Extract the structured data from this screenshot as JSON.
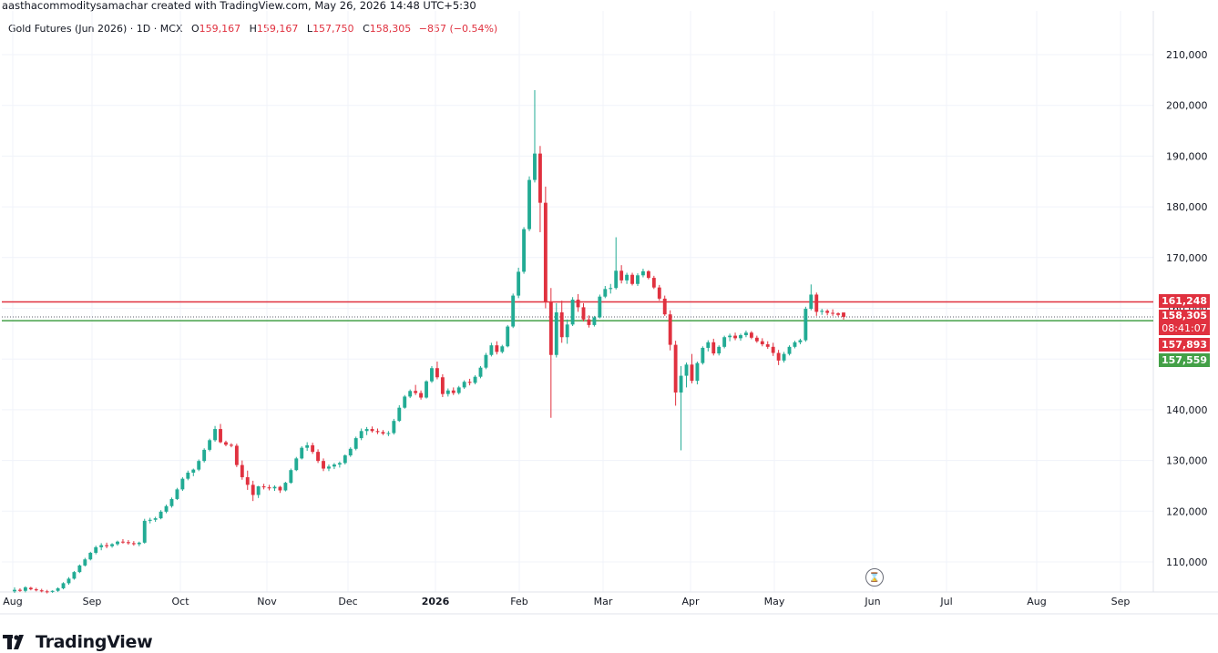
{
  "header": {
    "created_by": "aasthacommoditysamachar created with TradingView.com, May 26, 2026 14:48 UTC+5:30"
  },
  "legend": {
    "symbol": "Gold Futures (Jun 2026) · 1D · MCX",
    "o_key": "O",
    "o_val": "159,167",
    "h_key": "H",
    "h_val": "159,167",
    "l_key": "L",
    "l_val": "157,750",
    "c_key": "C",
    "c_val": "158,305",
    "change": "−857 (−0.54%)"
  },
  "price_tags": {
    "resistance": "161,248",
    "last": "158,305",
    "countdown": "08:41:07",
    "prev": "157,893",
    "support": "157,559"
  },
  "colors": {
    "up": "#22ab94",
    "down": "#e0313f",
    "resistance_line": "#e0313f",
    "support_line": "#43a047",
    "grid": "#f0f3fa"
  },
  "brand": {
    "name": "TradingView"
  },
  "icons": {
    "replay": "replay-icon",
    "logo": "tradingview-logo-icon"
  },
  "chart_data": {
    "type": "candlestick",
    "title": "Gold Futures (Jun 2026) · 1D · MCX",
    "ylim": [
      104000,
      214000
    ],
    "y_ticks": [
      110000,
      120000,
      130000,
      140000,
      150000,
      160000,
      170000,
      180000,
      190000,
      200000,
      210000
    ],
    "y_tick_labels": [
      "110,000",
      "120,000",
      "130,000",
      "140,000",
      "150,000",
      "160,000",
      "170,000",
      "180,000",
      "190,000",
      "200,000",
      "210,000"
    ],
    "x_ticks": [
      "Aug",
      "Sep",
      "Oct",
      "Nov",
      "Dec",
      "2026",
      "Feb",
      "Mar",
      "Apr",
      "May",
      "Jun",
      "Jul",
      "Aug",
      "Sep"
    ],
    "horizontal_lines": [
      {
        "value": 161248,
        "color": "#e0313f"
      },
      {
        "value": 157559,
        "color": "#43a047"
      }
    ],
    "last_price": 158305,
    "grid": true,
    "candle_keys": [
      "open",
      "high",
      "low",
      "close"
    ],
    "candles": [
      [
        104200,
        105000,
        103900,
        104500
      ],
      [
        104500,
        104800,
        104100,
        104300
      ],
      [
        104300,
        105200,
        104000,
        105000
      ],
      [
        104900,
        105100,
        104400,
        104600
      ],
      [
        104600,
        104900,
        104200,
        104400
      ],
      [
        104400,
        104700,
        104000,
        104200
      ],
      [
        104200,
        104500,
        103800,
        104100
      ],
      [
        104100,
        104400,
        103900,
        104300
      ],
      [
        104300,
        105000,
        104100,
        104800
      ],
      [
        104800,
        106000,
        104600,
        105800
      ],
      [
        105800,
        107000,
        105500,
        106700
      ],
      [
        106700,
        108200,
        106500,
        108000
      ],
      [
        108000,
        109500,
        107800,
        109300
      ],
      [
        109300,
        110800,
        109100,
        110500
      ],
      [
        110500,
        112000,
        110300,
        111800
      ],
      [
        111800,
        113200,
        111500,
        112900
      ],
      [
        112900,
        113700,
        112300,
        113300
      ],
      [
        113300,
        113800,
        112700,
        113100
      ],
      [
        113100,
        113700,
        112800,
        113500
      ],
      [
        113500,
        114200,
        113200,
        114000
      ],
      [
        114000,
        114500,
        113600,
        113900
      ],
      [
        113900,
        114300,
        113400,
        113700
      ],
      [
        113700,
        114100,
        113200,
        113500
      ],
      [
        113500,
        114000,
        113100,
        113800
      ],
      [
        113800,
        118500,
        113600,
        118100
      ],
      [
        118100,
        118700,
        117600,
        118300
      ],
      [
        118300,
        118900,
        117900,
        118600
      ],
      [
        118600,
        120200,
        118400,
        119900
      ],
      [
        119900,
        121300,
        119600,
        121000
      ],
      [
        121000,
        122700,
        120700,
        122400
      ],
      [
        122400,
        124600,
        122200,
        124300
      ],
      [
        124300,
        126700,
        124000,
        126400
      ],
      [
        126400,
        128000,
        126100,
        127600
      ],
      [
        127600,
        128400,
        126900,
        128200
      ],
      [
        128200,
        130200,
        127900,
        129900
      ],
      [
        129900,
        132400,
        129600,
        132100
      ],
      [
        132100,
        134300,
        131800,
        134000
      ],
      [
        134000,
        136800,
        133700,
        136200
      ],
      [
        136200,
        137200,
        133400,
        133600
      ],
      [
        133600,
        133900,
        132800,
        133100
      ],
      [
        133100,
        133400,
        132600,
        132900
      ],
      [
        132900,
        133300,
        128700,
        129100
      ],
      [
        129100,
        130000,
        126200,
        126700
      ],
      [
        126700,
        128000,
        124200,
        125200
      ],
      [
        125200,
        126000,
        122000,
        123200
      ],
      [
        123200,
        125000,
        122600,
        124900
      ],
      [
        124900,
        125400,
        124300,
        124700
      ],
      [
        124700,
        125200,
        124100,
        124500
      ],
      [
        124500,
        125100,
        124000,
        124800
      ],
      [
        124800,
        125000,
        123600,
        124100
      ],
      [
        124100,
        125800,
        123900,
        125600
      ],
      [
        125600,
        128400,
        125400,
        128100
      ],
      [
        128100,
        130700,
        127900,
        130400
      ],
      [
        130400,
        132800,
        130200,
        132500
      ],
      [
        132500,
        133600,
        131900,
        133000
      ],
      [
        133000,
        133500,
        131300,
        131700
      ],
      [
        131700,
        132200,
        129500,
        129900
      ],
      [
        129900,
        130400,
        127900,
        128400
      ],
      [
        128400,
        129200,
        127900,
        128800
      ],
      [
        128800,
        129500,
        128300,
        129200
      ],
      [
        129200,
        129800,
        128600,
        129500
      ],
      [
        129500,
        131200,
        129200,
        131000
      ],
      [
        131000,
        132600,
        130700,
        132300
      ],
      [
        132300,
        134700,
        132000,
        134400
      ],
      [
        134400,
        136300,
        134000,
        135800
      ],
      [
        135800,
        136600,
        135000,
        136200
      ],
      [
        136200,
        136700,
        135500,
        135800
      ],
      [
        135800,
        136300,
        135200,
        135600
      ],
      [
        135600,
        136000,
        135000,
        135300
      ],
      [
        135300,
        135800,
        134800,
        135400
      ],
      [
        135400,
        138200,
        135100,
        137800
      ],
      [
        137800,
        140900,
        137600,
        140400
      ],
      [
        140400,
        142900,
        140200,
        142600
      ],
      [
        142600,
        144000,
        142300,
        143700
      ],
      [
        143700,
        144900,
        142900,
        143300
      ],
      [
        143300,
        143800,
        142000,
        142400
      ],
      [
        142400,
        145800,
        142200,
        145600
      ],
      [
        145600,
        148600,
        145300,
        148200
      ],
      [
        148200,
        149500,
        146000,
        146400
      ],
      [
        146400,
        147000,
        142500,
        143100
      ],
      [
        143100,
        144200,
        142600,
        143800
      ],
      [
        143800,
        144400,
        142900,
        143300
      ],
      [
        143300,
        144700,
        143000,
        144400
      ],
      [
        144400,
        145800,
        144100,
        145500
      ],
      [
        145500,
        146100,
        144800,
        145300
      ],
      [
        145300,
        146800,
        145000,
        146500
      ],
      [
        146500,
        148600,
        146200,
        148300
      ],
      [
        148300,
        151200,
        148000,
        150800
      ],
      [
        150800,
        153200,
        150500,
        152700
      ],
      [
        152700,
        153500,
        150900,
        151400
      ],
      [
        151400,
        152800,
        151100,
        152500
      ],
      [
        152500,
        156700,
        152300,
        156400
      ],
      [
        156400,
        162900,
        156100,
        162500
      ],
      [
        162500,
        168000,
        162000,
        167200
      ],
      [
        167200,
        176000,
        166800,
        175600
      ],
      [
        175600,
        186000,
        175200,
        185300
      ],
      [
        185300,
        203000,
        184800,
        190500
      ],
      [
        190500,
        192000,
        175000,
        180800
      ],
      [
        180800,
        184000,
        160000,
        161200
      ],
      [
        161200,
        164000,
        138400,
        150800
      ],
      [
        150800,
        161000,
        150300,
        159200
      ],
      [
        159200,
        161500,
        153200,
        154300
      ],
      [
        154300,
        157800,
        153000,
        156800
      ],
      [
        156800,
        162200,
        156500,
        161700
      ],
      [
        161700,
        162800,
        159300,
        160200
      ],
      [
        160200,
        161000,
        157400,
        157800
      ],
      [
        157800,
        158600,
        156200,
        156700
      ],
      [
        156700,
        158500,
        156400,
        158200
      ],
      [
        158200,
        162700,
        158000,
        162300
      ],
      [
        162300,
        164400,
        162000,
        163800
      ],
      [
        163800,
        164800,
        162900,
        164000
      ],
      [
        164000,
        174000,
        163700,
        167400
      ],
      [
        167400,
        168500,
        164900,
        165500
      ],
      [
        165500,
        167000,
        164800,
        166600
      ],
      [
        166600,
        167000,
        164500,
        164800
      ],
      [
        164800,
        166900,
        164400,
        166500
      ],
      [
        166500,
        167800,
        166100,
        167300
      ],
      [
        167300,
        167500,
        165700,
        166000
      ],
      [
        166000,
        166400,
        163800,
        164100
      ],
      [
        164100,
        164600,
        161500,
        161900
      ],
      [
        161900,
        162500,
        158500,
        158800
      ],
      [
        158800,
        159600,
        151700,
        152800
      ],
      [
        152800,
        153600,
        140800,
        143400
      ],
      [
        143400,
        148600,
        132000,
        146700
      ],
      [
        146700,
        149300,
        144400,
        148900
      ],
      [
        148900,
        151000,
        145200,
        145700
      ],
      [
        145700,
        149500,
        145000,
        149200
      ],
      [
        149200,
        152500,
        148900,
        152200
      ],
      [
        152200,
        153700,
        151500,
        153300
      ],
      [
        153300,
        154000,
        150700,
        151100
      ],
      [
        151100,
        152700,
        150700,
        152400
      ],
      [
        152400,
        154600,
        152100,
        154300
      ],
      [
        154300,
        155000,
        153500,
        154600
      ],
      [
        154600,
        155200,
        153700,
        154100
      ],
      [
        154100,
        155000,
        153600,
        154700
      ],
      [
        154700,
        155600,
        154300,
        155200
      ],
      [
        155200,
        155500,
        153900,
        154200
      ],
      [
        154200,
        154600,
        153200,
        153500
      ],
      [
        153500,
        154100,
        152500,
        152900
      ],
      [
        152900,
        153500,
        152000,
        152400
      ],
      [
        152400,
        153200,
        150600,
        151200
      ],
      [
        151200,
        151800,
        148800,
        149700
      ],
      [
        149700,
        151400,
        149300,
        151000
      ],
      [
        151000,
        152700,
        150700,
        152400
      ],
      [
        152400,
        153600,
        152100,
        153300
      ],
      [
        153300,
        154000,
        152900,
        153700
      ],
      [
        153700,
        160300,
        153400,
        159900
      ],
      [
        159900,
        164700,
        159600,
        162700
      ],
      [
        162700,
        163100,
        158500,
        159300
      ],
      [
        159300,
        159900,
        158700,
        159500
      ],
      [
        159500,
        159800,
        158600,
        159100
      ],
      [
        159100,
        159800,
        158500,
        159000
      ],
      [
        159000,
        159200,
        158400,
        158700
      ],
      [
        159167,
        159167,
        157750,
        158305
      ]
    ]
  }
}
